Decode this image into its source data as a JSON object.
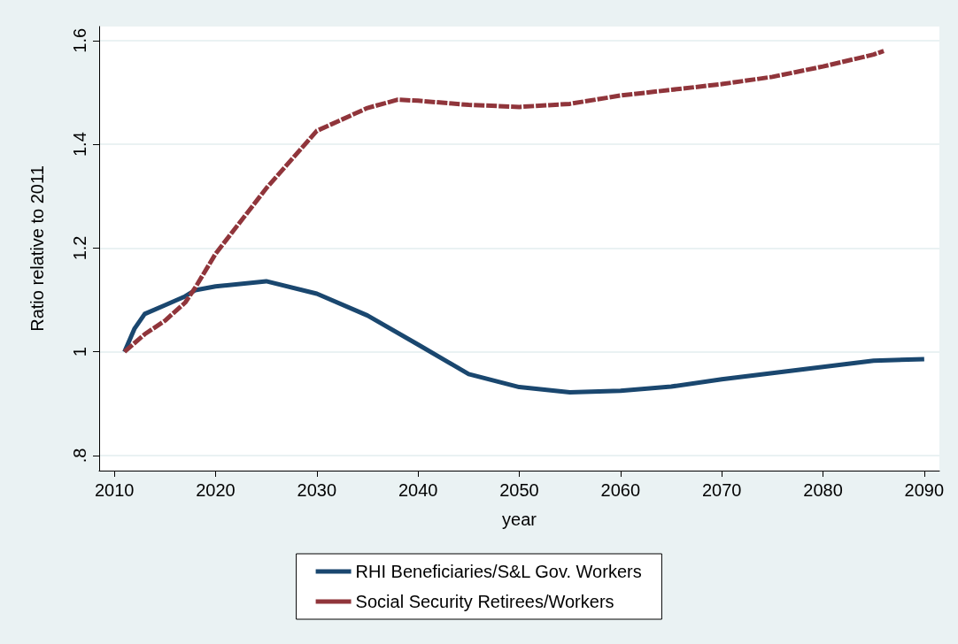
{
  "chart_data": {
    "type": "line",
    "xlabel": "year",
    "ylabel": "Ratio relative to 2011",
    "xlim": [
      2008.5,
      2091.5
    ],
    "xticks": [
      2010,
      2020,
      2030,
      2040,
      2050,
      2060,
      2070,
      2080,
      2090
    ],
    "ylim": [
      0.771,
      1.627
    ],
    "yticks": [
      {
        "value": 0.8,
        "label": ".8"
      },
      1,
      1.2,
      1.4,
      1.6
    ],
    "grid": "y",
    "legend": "bottom",
    "marker": "none",
    "series": [
      {
        "name": "RHI Beneficiaries/S&L Gov. Workers",
        "color": "#1a476f",
        "line_style": "solid",
        "x": [
          2011,
          2012,
          2013,
          2015,
          2017,
          2018,
          2020,
          2025,
          2030,
          2035,
          2040,
          2045,
          2050,
          2055,
          2060,
          2065,
          2070,
          2075,
          2080,
          2085,
          2090
        ],
        "values": [
          1.0,
          1.045,
          1.073,
          1.09,
          1.107,
          1.119,
          1.126,
          1.136,
          1.112,
          1.07,
          1.014,
          0.957,
          0.932,
          0.922,
          0.925,
          0.933,
          0.947,
          0.959,
          0.971,
          0.983,
          0.986
        ]
      },
      {
        "name": "Social Security Retirees/Workers",
        "color": "#90353b",
        "line_style": "dashed",
        "x": [
          2011,
          2013,
          2015,
          2017,
          2018,
          2020,
          2025,
          2030,
          2035,
          2038,
          2040,
          2045,
          2050,
          2055,
          2060,
          2065,
          2070,
          2075,
          2080,
          2085,
          2086
        ],
        "values": [
          1.0,
          1.034,
          1.06,
          1.095,
          1.124,
          1.189,
          1.315,
          1.426,
          1.47,
          1.486,
          1.484,
          1.476,
          1.472,
          1.478,
          1.494,
          1.505,
          1.516,
          1.53,
          1.55,
          1.573,
          1.58
        ]
      }
    ]
  }
}
